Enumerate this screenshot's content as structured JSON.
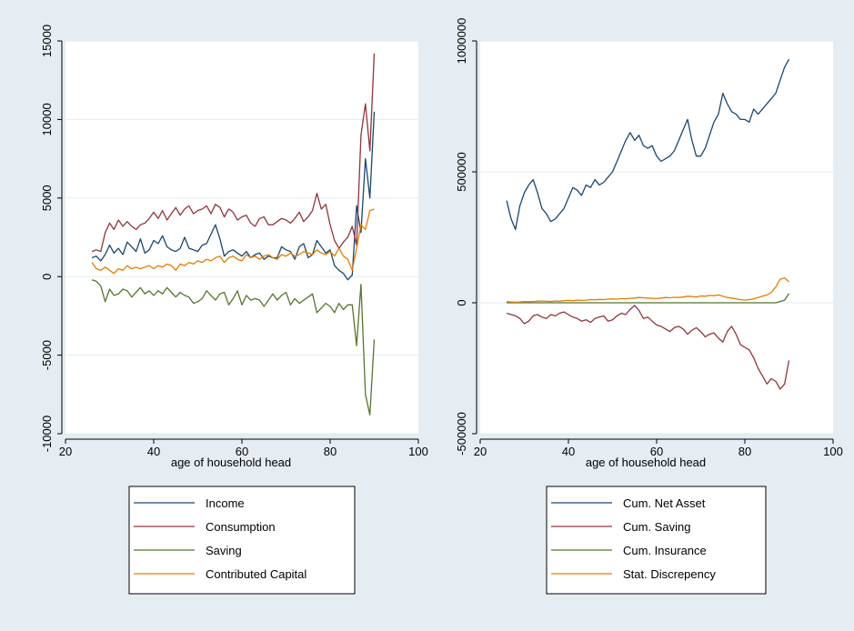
{
  "colors": {
    "background": "#e6edf2",
    "plot_area": "#ffffff",
    "grid": "#e3ebef",
    "axis": "#000000",
    "navy": "#1a476f",
    "maroon": "#90353b",
    "green": "#55752f",
    "orange": "#e37e00"
  },
  "chart_data": [
    {
      "type": "line",
      "xlabel": "age of household head",
      "ylabel": "",
      "xlim": [
        20,
        100
      ],
      "ylim": [
        -10000,
        15000
      ],
      "xticks": [
        20,
        40,
        60,
        80,
        100
      ],
      "yticks": [
        -10000,
        -5000,
        0,
        5000,
        10000,
        15000
      ],
      "grid": true,
      "legend_position": "bottom",
      "x": [
        26,
        27,
        28,
        29,
        30,
        31,
        32,
        33,
        34,
        35,
        36,
        37,
        38,
        39,
        40,
        41,
        42,
        43,
        44,
        45,
        46,
        47,
        48,
        49,
        50,
        51,
        52,
        53,
        54,
        55,
        56,
        57,
        58,
        59,
        60,
        61,
        62,
        63,
        64,
        65,
        66,
        67,
        68,
        69,
        70,
        71,
        72,
        73,
        74,
        75,
        76,
        77,
        78,
        79,
        80,
        81,
        82,
        83,
        84,
        85,
        86,
        87,
        88,
        89,
        90
      ],
      "series": [
        {
          "name": "Income",
          "color": "#1a476f",
          "values": [
            1200,
            1300,
            1000,
            1400,
            2000,
            1500,
            1800,
            1400,
            2200,
            1900,
            1600,
            2400,
            1500,
            1700,
            2300,
            2100,
            2600,
            1900,
            1700,
            1600,
            1800,
            2500,
            1800,
            1700,
            1600,
            2000,
            2100,
            2700,
            3300,
            2400,
            1300,
            1600,
            1700,
            1500,
            1300,
            1600,
            1200,
            1400,
            1500,
            1100,
            1300,
            1200,
            1200,
            1900,
            1700,
            1600,
            1100,
            1900,
            2100,
            1200,
            1400,
            2300,
            1900,
            1500,
            1700,
            700,
            400,
            200,
            -200,
            100,
            4500,
            2800,
            7500,
            5000,
            10500
          ]
        },
        {
          "name": "Consumption",
          "color": "#90353b",
          "values": [
            1600,
            1700,
            1600,
            2800,
            3400,
            3000,
            3600,
            3200,
            3500,
            3200,
            3000,
            3300,
            3400,
            3700,
            4100,
            3700,
            4200,
            3600,
            4000,
            4400,
            3900,
            4300,
            4500,
            4000,
            4200,
            4300,
            4500,
            4000,
            4600,
            4400,
            3800,
            4300,
            4100,
            3600,
            3800,
            3900,
            3400,
            3200,
            3700,
            3800,
            3300,
            3300,
            3500,
            3700,
            3600,
            3400,
            3700,
            4100,
            3500,
            3800,
            4200,
            5300,
            4300,
            4600,
            3300,
            2300,
            1800,
            2200,
            2500,
            3200,
            2000,
            9000,
            11000,
            8000,
            14200
          ]
        },
        {
          "name": "Saving",
          "color": "#55752f",
          "values": [
            -200,
            -300,
            -600,
            -1600,
            -800,
            -1200,
            -1100,
            -800,
            -900,
            -1300,
            -1000,
            -700,
            -1100,
            -900,
            -1200,
            -900,
            -1100,
            -700,
            -1000,
            -1300,
            -1000,
            -1200,
            -1300,
            -1700,
            -1600,
            -1400,
            -900,
            -1200,
            -1500,
            -1100,
            -1000,
            -1800,
            -1400,
            -900,
            -1800,
            -1200,
            -1500,
            -1400,
            -1500,
            -1900,
            -1500,
            -1100,
            -1500,
            -1200,
            -1000,
            -1800,
            -1400,
            -1700,
            -1500,
            -1300,
            -1100,
            -2300,
            -2000,
            -1700,
            -1900,
            -2300,
            -1700,
            -2100,
            -1800,
            -1800,
            -4400,
            -500,
            -7500,
            -8800,
            -4000
          ]
        },
        {
          "name": "Contributed Capital",
          "color": "#e37e00",
          "values": [
            900,
            500,
            400,
            600,
            400,
            200,
            500,
            400,
            700,
            500,
            600,
            500,
            600,
            700,
            500,
            700,
            600,
            800,
            700,
            400,
            800,
            700,
            900,
            800,
            1000,
            900,
            1100,
            1000,
            1200,
            1300,
            900,
            1200,
            1300,
            1100,
            1000,
            1400,
            1200,
            1300,
            1100,
            1300,
            1400,
            1200,
            1100,
            1400,
            1300,
            1500,
            1300,
            1400,
            1600,
            1500,
            1400,
            1700,
            1500,
            1400,
            1600,
            1300,
            1800,
            1300,
            1100,
            400,
            1800,
            3300,
            3000,
            4200,
            4300
          ]
        }
      ]
    },
    {
      "type": "line",
      "xlabel": "age of household head",
      "ylabel": "",
      "xlim": [
        20,
        100
      ],
      "ylim": [
        -500000,
        1000000
      ],
      "xticks": [
        20,
        40,
        60,
        80,
        100
      ],
      "yticks": [
        -500000,
        0,
        500000,
        1000000
      ],
      "grid": true,
      "legend_position": "bottom",
      "x": [
        26,
        27,
        28,
        29,
        30,
        31,
        32,
        33,
        34,
        35,
        36,
        37,
        38,
        39,
        40,
        41,
        42,
        43,
        44,
        45,
        46,
        47,
        48,
        49,
        50,
        51,
        52,
        53,
        54,
        55,
        56,
        57,
        58,
        59,
        60,
        61,
        62,
        63,
        64,
        65,
        66,
        67,
        68,
        69,
        70,
        71,
        72,
        73,
        74,
        75,
        76,
        77,
        78,
        79,
        80,
        81,
        82,
        83,
        84,
        85,
        86,
        87,
        88,
        89,
        90
      ],
      "series": [
        {
          "name": "Cum. Net Asset",
          "color": "#1a476f",
          "values": [
            390000,
            320000,
            280000,
            370000,
            420000,
            450000,
            470000,
            420000,
            360000,
            340000,
            310000,
            320000,
            340000,
            360000,
            400000,
            440000,
            430000,
            410000,
            450000,
            440000,
            470000,
            450000,
            460000,
            480000,
            500000,
            540000,
            580000,
            620000,
            650000,
            620000,
            640000,
            600000,
            590000,
            600000,
            560000,
            540000,
            550000,
            560000,
            580000,
            620000,
            660000,
            700000,
            620000,
            560000,
            560000,
            590000,
            640000,
            690000,
            720000,
            800000,
            760000,
            730000,
            720000,
            700000,
            700000,
            690000,
            740000,
            720000,
            740000,
            760000,
            780000,
            800000,
            850000,
            900000,
            930000
          ]
        },
        {
          "name": "Cum. Saving",
          "color": "#90353b",
          "values": [
            -40000,
            -45000,
            -50000,
            -60000,
            -80000,
            -70000,
            -50000,
            -45000,
            -55000,
            -60000,
            -45000,
            -50000,
            -40000,
            -35000,
            -45000,
            -55000,
            -60000,
            -70000,
            -65000,
            -75000,
            -60000,
            -55000,
            -50000,
            -70000,
            -65000,
            -50000,
            -40000,
            -45000,
            -25000,
            -10000,
            -30000,
            -60000,
            -55000,
            -70000,
            -85000,
            -90000,
            -100000,
            -110000,
            -95000,
            -90000,
            -100000,
            -120000,
            -105000,
            -95000,
            -110000,
            -130000,
            -120000,
            -115000,
            -135000,
            -150000,
            -110000,
            -90000,
            -120000,
            -160000,
            -170000,
            -180000,
            -210000,
            -250000,
            -280000,
            -310000,
            -290000,
            -300000,
            -330000,
            -310000,
            -220000
          ]
        },
        {
          "name": "Cum. Insurance",
          "color": "#55752f",
          "values": [
            0,
            0,
            0,
            0,
            0,
            0,
            0,
            0,
            0,
            0,
            0,
            0,
            0,
            0,
            0,
            0,
            0,
            0,
            0,
            0,
            0,
            0,
            0,
            0,
            0,
            0,
            0,
            0,
            0,
            0,
            0,
            0,
            0,
            0,
            0,
            0,
            0,
            0,
            0,
            0,
            0,
            0,
            0,
            0,
            0,
            0,
            0,
            0,
            0,
            0,
            0,
            0,
            0,
            0,
            0,
            0,
            0,
            0,
            0,
            0,
            0,
            0,
            5000,
            10000,
            35000
          ]
        },
        {
          "name": "Stat. Discrepency",
          "color": "#e37e00",
          "values": [
            5000,
            3000,
            2000,
            3000,
            5000,
            4000,
            5000,
            6000,
            7000,
            6000,
            5000,
            7000,
            6000,
            8000,
            9000,
            8000,
            10000,
            9000,
            10000,
            12000,
            11000,
            13000,
            12000,
            14000,
            15000,
            14000,
            16000,
            15000,
            17000,
            18000,
            20000,
            19000,
            18000,
            17000,
            16000,
            18000,
            20000,
            19000,
            21000,
            20000,
            22000,
            25000,
            24000,
            22000,
            26000,
            25000,
            28000,
            27000,
            30000,
            25000,
            20000,
            18000,
            15000,
            12000,
            10000,
            12000,
            15000,
            20000,
            25000,
            30000,
            40000,
            60000,
            90000,
            95000,
            80000
          ]
        }
      ]
    }
  ]
}
